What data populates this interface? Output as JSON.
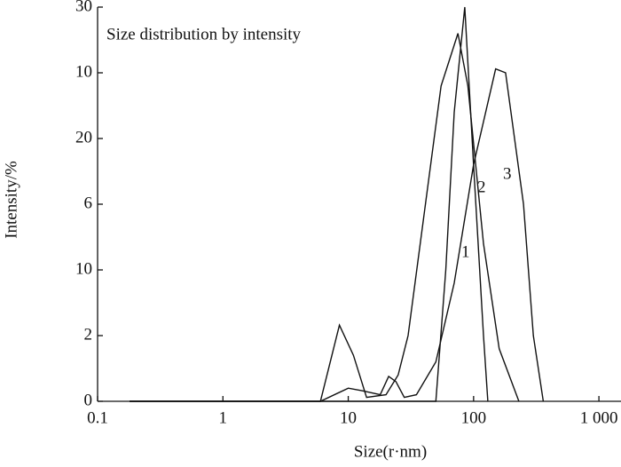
{
  "chart_data": {
    "type": "line",
    "title": "Size distribution by intensity",
    "x_label": "Size(r·nm)",
    "y_label": "Intensity/%",
    "log_x": true,
    "xlim": [
      0.1,
      1500
    ],
    "xticks": [
      0.1,
      1,
      10,
      100,
      {
        "value": 1000,
        "label": "1 000"
      }
    ],
    "ylim": [
      0,
      30
    ],
    "yticks": [
      0,
      {
        "value": 5,
        "label": "2"
      },
      10,
      {
        "value": 15,
        "label": "6"
      },
      20,
      {
        "value": 25,
        "label": "10"
      },
      30
    ],
    "series": [
      {
        "name": "1",
        "color": "#111111",
        "x": [
          0.18,
          50,
          60,
          70,
          85,
          100,
          120,
          130
        ],
        "values": [
          0,
          0,
          10,
          22,
          30,
          18,
          5,
          0
        ]
      },
      {
        "name": "2",
        "color": "#111111",
        "x": [
          0.18,
          6,
          8.5,
          11,
          14,
          20,
          25,
          30,
          40,
          55,
          75,
          90,
          120,
          160,
          230
        ],
        "values": [
          0,
          0,
          5.8,
          3.5,
          0.3,
          0.5,
          2,
          5,
          14,
          24,
          28,
          24,
          12,
          4,
          0
        ]
      },
      {
        "name": "3",
        "color": "#111111",
        "x": [
          0.18,
          6,
          10,
          13,
          18,
          21,
          24,
          28,
          35,
          50,
          70,
          100,
          150,
          180,
          250,
          300,
          360
        ],
        "values": [
          0,
          0,
          1,
          0.8,
          0.5,
          1.9,
          1.5,
          0.3,
          0.5,
          3,
          9,
          18,
          25.3,
          25,
          15,
          5,
          0
        ]
      }
    ]
  }
}
